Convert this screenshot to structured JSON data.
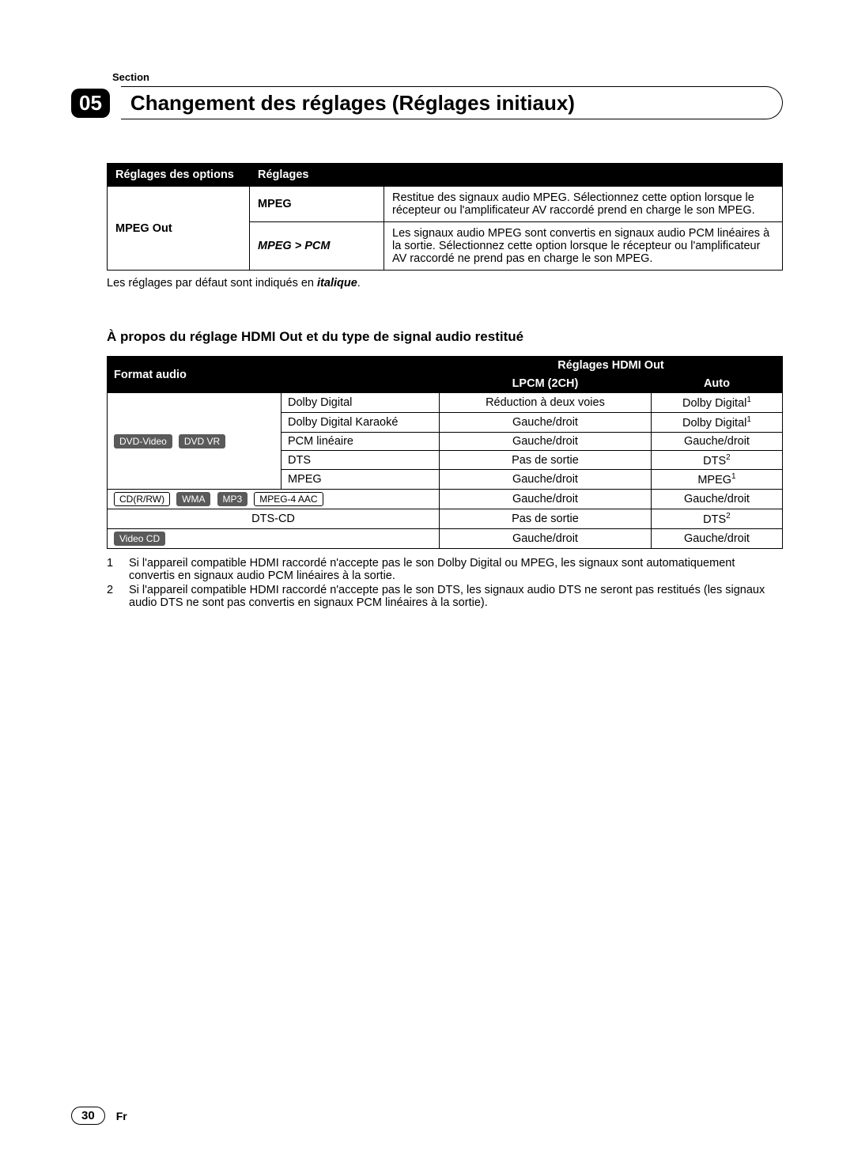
{
  "section_label": "Section",
  "chapter": {
    "number": "05",
    "title": "Changement des réglages (Réglages initiaux)"
  },
  "table1": {
    "headers": {
      "col1": "Réglages des options",
      "col2": "Réglages"
    },
    "rowspan_label": "MPEG Out",
    "rows": [
      {
        "setting": "MPEG",
        "desc": "Restitue des signaux audio MPEG. Sélectionnez cette option lorsque le récepteur ou l'amplificateur AV raccordé prend en charge le son MPEG."
      },
      {
        "setting": "MPEG > PCM",
        "desc": "Les signaux audio MPEG sont convertis en signaux audio PCM linéaires à la sortie. Sélectionnez cette option lorsque le récepteur ou l'amplificateur AV raccordé ne prend pas en charge le son MPEG."
      }
    ]
  },
  "default_note": {
    "prefix": "Les réglages par défaut sont indiqués en ",
    "italic": "italique",
    "suffix": "."
  },
  "subheading": {
    "prefix": "À propos du réglage ",
    "mid": "HDMI Out",
    "suffix": " et du type de signal audio restitué"
  },
  "table2": {
    "headers": {
      "format": "Format audio",
      "hdmi": "Réglages HDMI Out",
      "lpcm": "LPCM (2CH)",
      "auto": "Auto"
    },
    "dvd_badges": [
      "DVD-Video",
      "DVD VR"
    ],
    "dvd_rows": [
      {
        "codec": "Dolby Digital",
        "lpcm": "Réduction à deux voies",
        "auto": "Dolby Digital",
        "auto_sup": "1"
      },
      {
        "codec": "Dolby Digital Karaoké",
        "lpcm": "Gauche/droit",
        "auto": "Dolby Digital",
        "auto_sup": "1"
      },
      {
        "codec": "PCM linéaire",
        "lpcm": "Gauche/droit",
        "auto": "Gauche/droit",
        "auto_sup": ""
      },
      {
        "codec": "DTS",
        "lpcm": "Pas de sortie",
        "auto": "DTS",
        "auto_sup": "2"
      },
      {
        "codec": "MPEG",
        "lpcm": "Gauche/droit",
        "auto": "MPEG",
        "auto_sup": "1"
      }
    ],
    "cd_row": {
      "badges": [
        "CD(R/RW)",
        "WMA",
        "MP3",
        "MPEG-4 AAC"
      ],
      "lpcm": "Gauche/droit",
      "auto": "Gauche/droit"
    },
    "dtscd_row": {
      "label": "DTS-CD",
      "lpcm": "Pas de sortie",
      "auto": "DTS",
      "auto_sup": "2"
    },
    "vcd_row": {
      "badge": "Video CD",
      "lpcm": "Gauche/droit",
      "auto": "Gauche/droit"
    }
  },
  "notes": [
    {
      "num": "1",
      "text": "Si l'appareil compatible HDMI raccordé n'accepte pas le son Dolby Digital ou MPEG, les signaux sont automatiquement convertis en signaux audio PCM linéaires à la sortie."
    },
    {
      "num": "2",
      "text": "Si l'appareil compatible HDMI raccordé n'accepte pas le son DTS, les signaux audio DTS ne seront pas restitués (les signaux audio DTS ne sont pas convertis en signaux PCM linéaires à la sortie)."
    }
  ],
  "footer": {
    "page": "30",
    "lang": "Fr"
  }
}
